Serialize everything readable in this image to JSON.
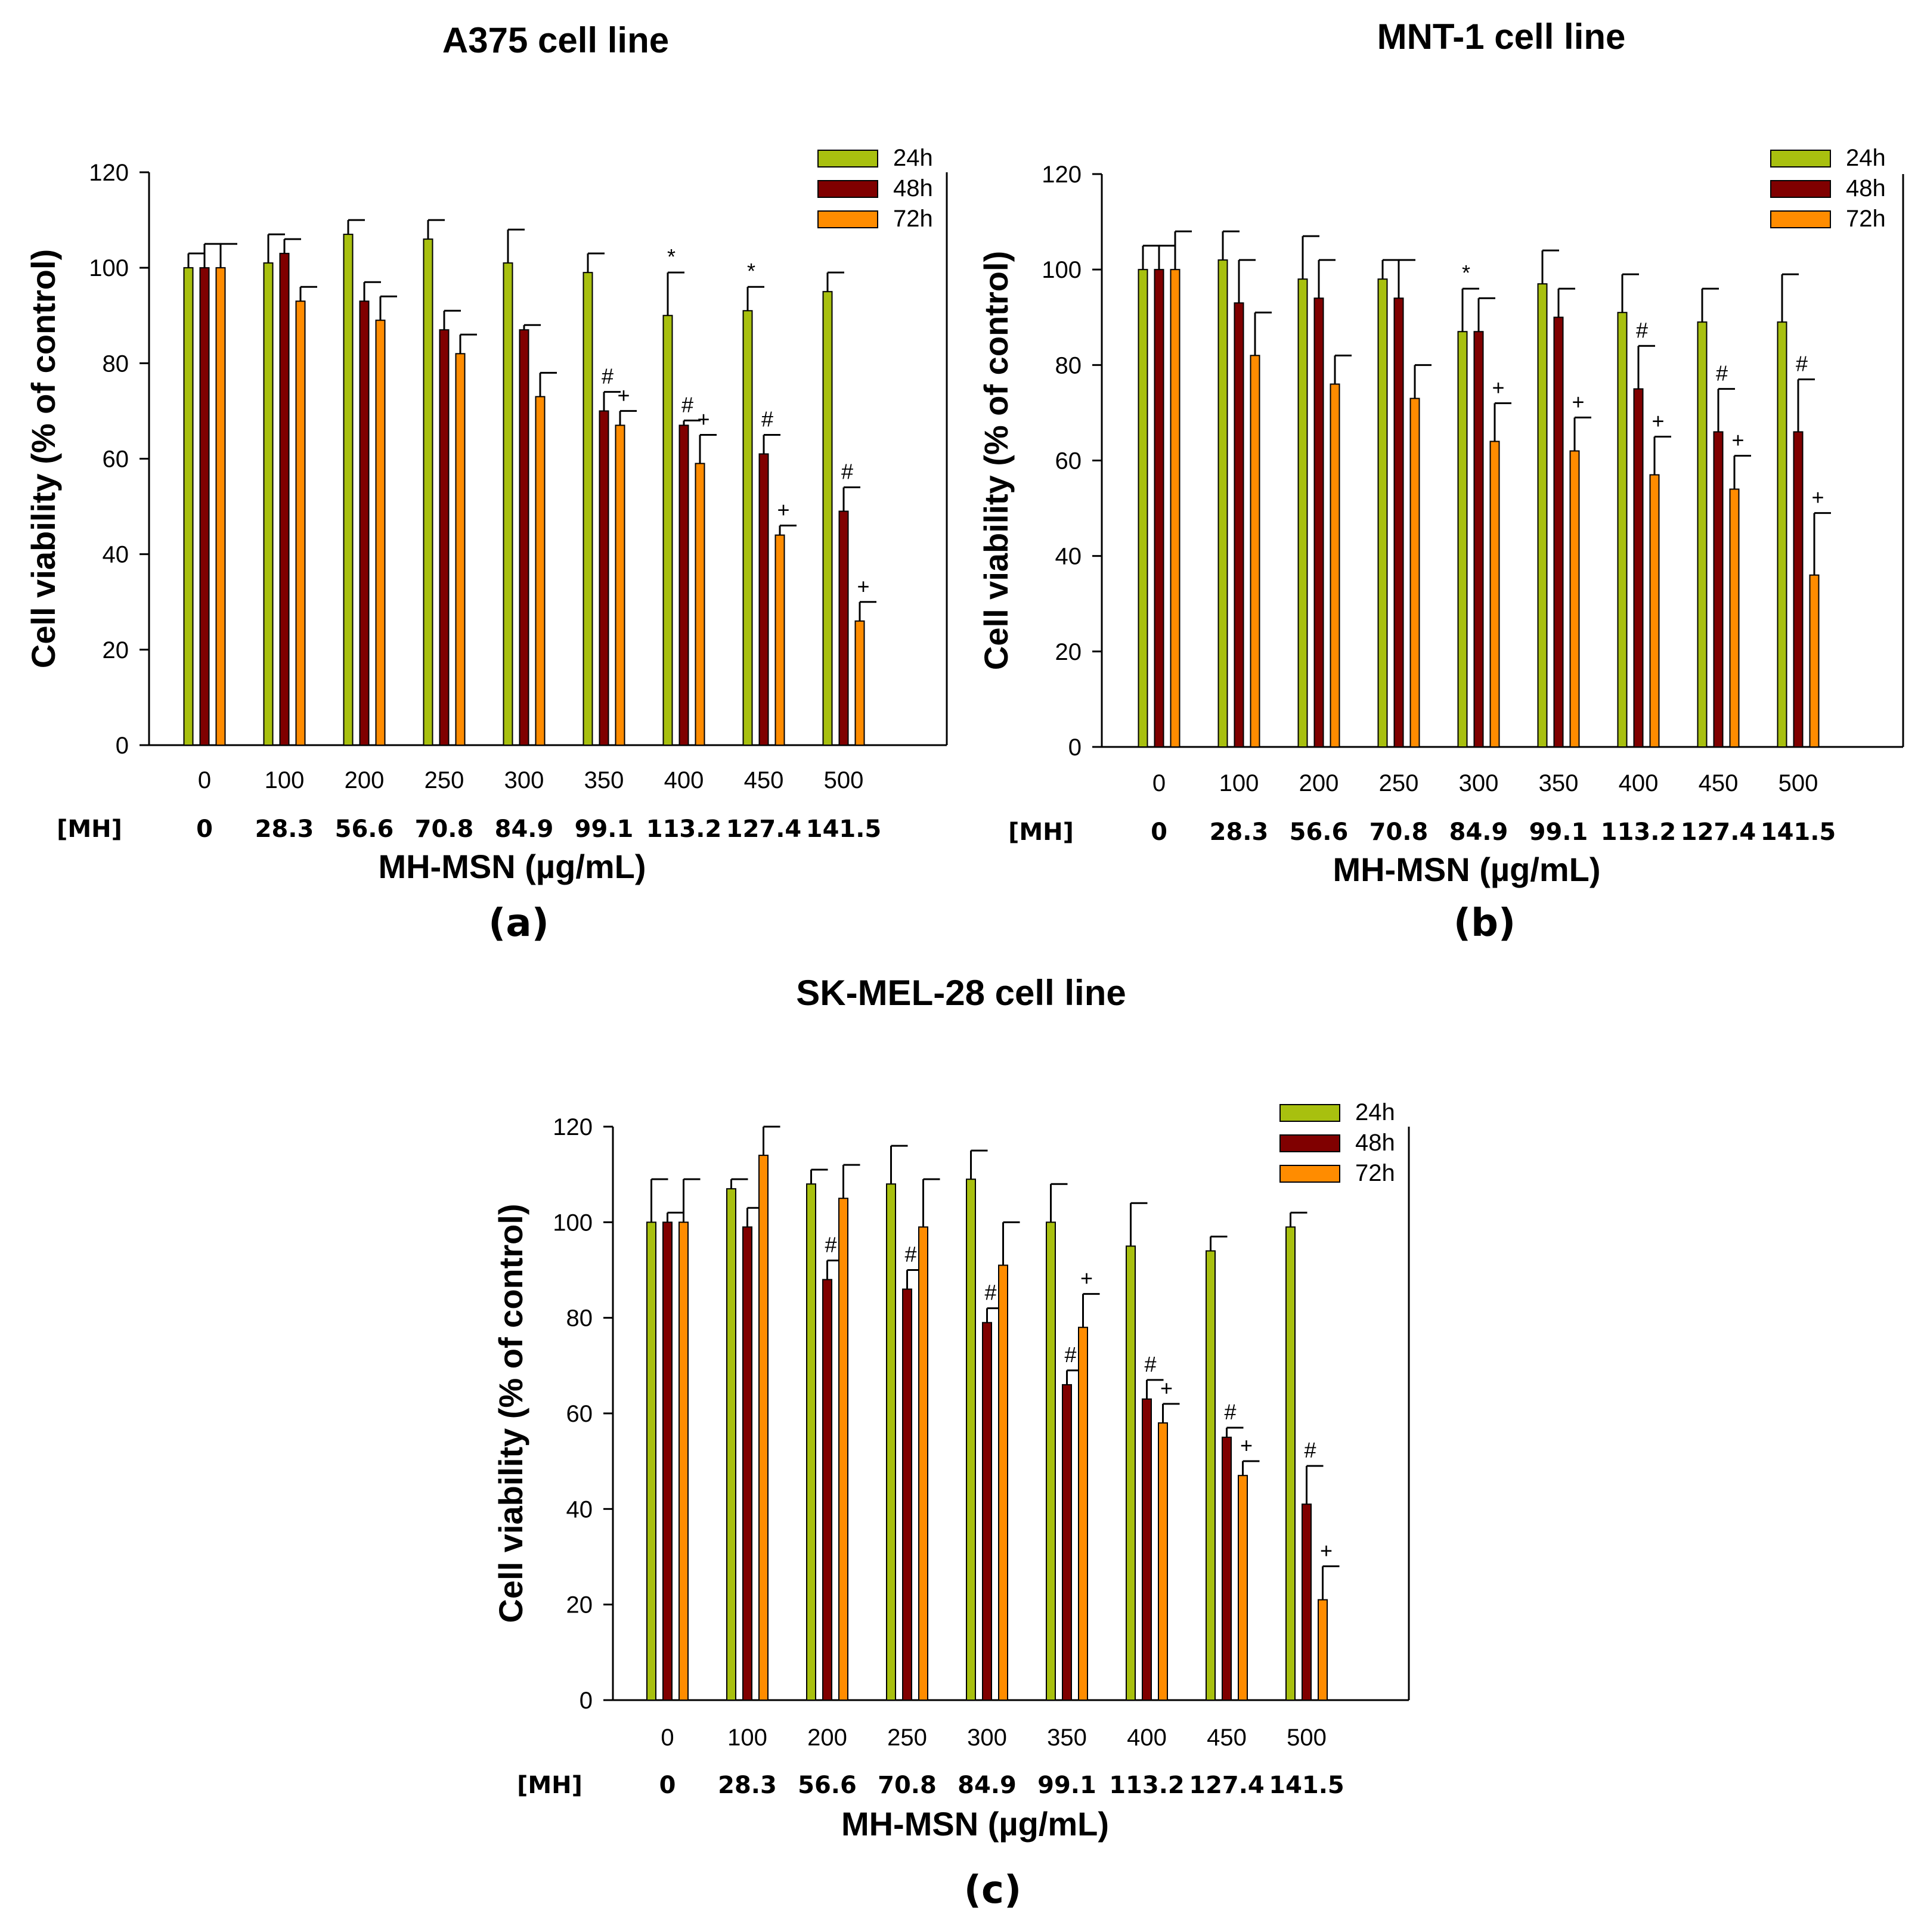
{
  "figure": {
    "x_unit_label": "MH-MSN (µg/mL)",
    "mh_row_label": "[MH]",
    "y_label": "Cell viability (% of control)",
    "y_ticks": [
      "0",
      "20",
      "40",
      "60",
      "80",
      "100",
      "120"
    ]
  },
  "colors": {
    "24h": "#a8c00f",
    "48h": "#800000",
    "72h": "#ff8c00",
    "axis": "#000000",
    "text": "#000000"
  },
  "chart_data": [
    {
      "type": "bar",
      "title": "A375 cell line",
      "panel_label": "(a)",
      "categories": [
        "0",
        "100",
        "200",
        "250",
        "300",
        "350",
        "400",
        "450",
        "500"
      ],
      "mh_values": [
        "0",
        "28.3",
        "56.6",
        "70.8",
        "84.9",
        "99.1",
        "113.2",
        "127.4",
        "141.5"
      ],
      "xlabel": "MH-MSN (µg/mL)",
      "ylabel": "Cell viability (% of control)",
      "ylim": [
        0,
        120
      ],
      "legend": [
        "24h",
        "48h",
        "72h"
      ],
      "series": [
        {
          "name": "24h",
          "values": [
            100,
            101,
            107,
            106,
            101,
            99,
            90,
            91,
            95
          ],
          "errors": [
            3,
            6,
            3,
            4,
            7,
            4,
            9,
            5,
            4
          ],
          "marks": [
            "",
            "",
            "",
            "",
            "",
            "",
            "*",
            "*",
            ""
          ]
        },
        {
          "name": "48h",
          "values": [
            100,
            103,
            93,
            87,
            87,
            70,
            67,
            61,
            49
          ],
          "errors": [
            5,
            3,
            4,
            4,
            1,
            4,
            1,
            4,
            5
          ],
          "marks": [
            "",
            "",
            "",
            "",
            "",
            "#",
            "#",
            "#",
            "#"
          ]
        },
        {
          "name": "72h",
          "values": [
            100,
            93,
            89,
            82,
            73,
            67,
            59,
            44,
            26
          ],
          "errors": [
            5,
            3,
            5,
            4,
            5,
            3,
            6,
            2,
            4
          ],
          "marks": [
            "",
            "",
            "",
            "",
            "",
            "+",
            "+",
            "+",
            "+"
          ]
        }
      ]
    },
    {
      "type": "bar",
      "title": "MNT-1 cell line",
      "panel_label": "(b)",
      "categories": [
        "0",
        "100",
        "200",
        "250",
        "300",
        "350",
        "400",
        "450",
        "500"
      ],
      "mh_values": [
        "0",
        "28.3",
        "56.6",
        "70.8",
        "84.9",
        "99.1",
        "113.2",
        "127.4",
        "141.5"
      ],
      "xlabel": "MH-MSN (µg/mL)",
      "ylabel": "Cell viability (% of control)",
      "ylim": [
        0,
        120
      ],
      "legend": [
        "24h",
        "48h",
        "72h"
      ],
      "series": [
        {
          "name": "24h",
          "values": [
            100,
            102,
            98,
            98,
            87,
            97,
            91,
            89,
            89
          ],
          "errors": [
            5,
            6,
            9,
            4,
            9,
            7,
            8,
            7,
            10
          ],
          "marks": [
            "",
            "",
            "",
            "",
            "*",
            "",
            "",
            "",
            ""
          ]
        },
        {
          "name": "48h",
          "values": [
            100,
            93,
            94,
            94,
            87,
            90,
            75,
            66,
            66
          ],
          "errors": [
            5,
            9,
            8,
            8,
            7,
            6,
            9,
            9,
            11
          ],
          "marks": [
            "",
            "",
            "",
            "",
            "",
            "",
            "#",
            "#",
            "#"
          ]
        },
        {
          "name": "72h",
          "values": [
            100,
            82,
            76,
            73,
            64,
            62,
            57,
            54,
            36
          ],
          "errors": [
            8,
            9,
            6,
            7,
            8,
            7,
            8,
            7,
            13
          ],
          "marks": [
            "",
            "",
            "",
            "",
            "+",
            "+",
            "+",
            "+",
            "+"
          ]
        }
      ]
    },
    {
      "type": "bar",
      "title": "SK-MEL-28 cell line",
      "panel_label": "(c)",
      "categories": [
        "0",
        "100",
        "200",
        "250",
        "300",
        "350",
        "400",
        "450",
        "500"
      ],
      "mh_values": [
        "0",
        "28.3",
        "56.6",
        "70.8",
        "84.9",
        "99.1",
        "113.2",
        "127.4",
        "141.5"
      ],
      "xlabel": "MH-MSN (µg/mL)",
      "ylabel": "Cell viability (% of control)",
      "ylim": [
        0,
        120
      ],
      "legend": [
        "24h",
        "48h",
        "72h"
      ],
      "series": [
        {
          "name": "24h",
          "values": [
            100,
            107,
            108,
            108,
            109,
            100,
            95,
            94,
            99
          ],
          "errors": [
            9,
            2,
            3,
            8,
            6,
            8,
            9,
            3,
            3
          ],
          "marks": [
            "",
            "",
            "",
            "",
            "",
            "",
            "",
            "",
            ""
          ]
        },
        {
          "name": "48h",
          "values": [
            100,
            99,
            88,
            86,
            79,
            66,
            63,
            55,
            41
          ],
          "errors": [
            2,
            4,
            4,
            4,
            3,
            3,
            4,
            2,
            8
          ],
          "marks": [
            "",
            "",
            "#",
            "#",
            "#",
            "#",
            "#",
            "#",
            "#"
          ]
        },
        {
          "name": "72h",
          "values": [
            100,
            114,
            105,
            99,
            91,
            78,
            58,
            47,
            21
          ],
          "errors": [
            9,
            6,
            7,
            10,
            9,
            7,
            4,
            3,
            7
          ],
          "marks": [
            "",
            "",
            "",
            "",
            "",
            "+",
            "+",
            "+",
            "+"
          ]
        }
      ]
    }
  ]
}
